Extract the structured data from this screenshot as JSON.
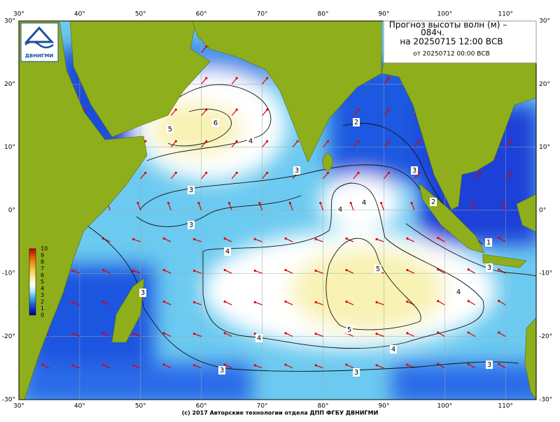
{
  "title": {
    "line1": "Прогноз высоты волн (м) –",
    "line2": "084ч.",
    "line3": "на 20250715 12:00 ВСВ",
    "line4": "от 20250712 00:00 ВСВ"
  },
  "logo": "ДВНИГМИ",
  "lon_labels": [
    "30°",
    "40°",
    "50°",
    "60°",
    "70°",
    "80°",
    "90°",
    "100°",
    "110°"
  ],
  "lat_labels": [
    "30°",
    "20°",
    "10°",
    "0°",
    "-10°",
    "-20°",
    "-30°"
  ],
  "colorbar_labels": [
    "10",
    "9",
    "8",
    "7",
    "6",
    "5",
    "4",
    "3",
    "2",
    "1",
    "0"
  ],
  "contour_labels": [
    "5",
    "6",
    "4",
    "3",
    "3",
    "3",
    "2",
    "3",
    "2",
    "4",
    "4",
    "4",
    "5",
    "4",
    "5",
    "4",
    "4",
    "3",
    "3",
    "3",
    "3",
    "1",
    "3"
  ],
  "footer": "(c) 2017 Авторские технологии отдела ДПП ФГБУ ДВНИГМИ"
}
